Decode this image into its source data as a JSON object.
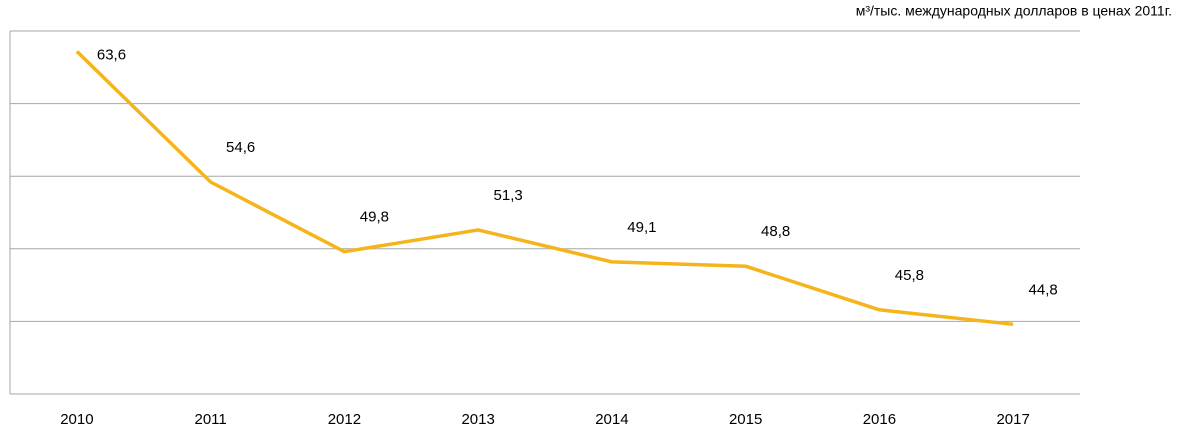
{
  "chart_data": {
    "type": "line",
    "unit_label": "м³/тыс. международных долларов в ценах 2011г.",
    "categories": [
      "2010",
      "2011",
      "2012",
      "2013",
      "2014",
      "2015",
      "2016",
      "2017"
    ],
    "series": [
      {
        "color": "#f6b41c",
        "values": [
          63.6,
          54.6,
          49.8,
          51.3,
          49.1,
          48.8,
          45.8,
          44.8
        ],
        "value_labels": [
          "63,6",
          "54,6",
          "49,8",
          "51,3",
          "49,1",
          "48,8",
          "45,8",
          "44,8"
        ]
      }
    ],
    "ylim": [
      40,
      65
    ],
    "yticks": [
      40,
      45,
      50,
      55,
      60,
      65
    ],
    "grid": true
  }
}
